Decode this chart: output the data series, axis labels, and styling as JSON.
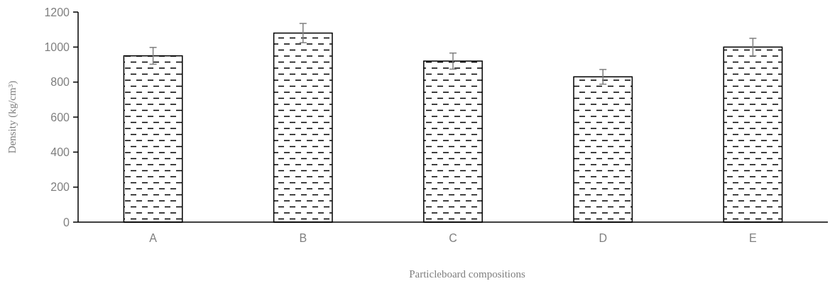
{
  "chart_data": {
    "type": "bar",
    "xlabel": "Particleboard compositions",
    "ylabel": "Density (kg/cm³)",
    "categories": [
      "A",
      "B",
      "C",
      "D",
      "E"
    ],
    "values": [
      950,
      1080,
      920,
      830,
      1000
    ],
    "errors": [
      48,
      55,
      46,
      42,
      50
    ],
    "color": "#000000",
    "ylim": [
      0,
      1200
    ],
    "yticks": [
      0,
      200,
      400,
      600,
      800,
      1000,
      1200
    ],
    "grid": false
  }
}
